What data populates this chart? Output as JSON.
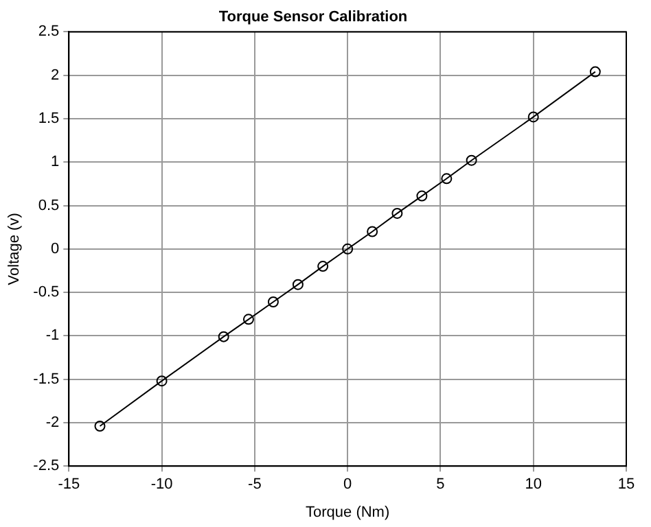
{
  "chart_data": {
    "type": "line",
    "title": "Torque Sensor Calibration",
    "xlabel": "Torque (Nm)",
    "ylabel": "Voltage (v)",
    "x": [
      -13.33,
      -10,
      -6.67,
      -5.33,
      -4,
      -2.67,
      -1.33,
      0,
      1.33,
      2.67,
      4,
      5.33,
      6.67,
      10,
      13.33
    ],
    "series": [
      {
        "color": "#000000",
        "values": [
          -2.04,
          -1.52,
          -1.01,
          -0.81,
          -0.61,
          -0.41,
          -0.2,
          0,
          0.2,
          0.41,
          0.61,
          0.81,
          1.02,
          1.52,
          2.04
        ]
      }
    ],
    "xlim": [
      -15,
      15
    ],
    "xticks": [
      -15,
      -10,
      -5,
      0,
      5,
      10,
      15
    ],
    "ylim": [
      -2.5,
      2.5
    ],
    "yticks": [
      -2.5,
      -2,
      -1.5,
      -1,
      -0.5,
      0,
      0.5,
      1,
      1.5,
      2,
      2.5
    ],
    "grid": true,
    "marker": "circle",
    "line_style": "solid"
  }
}
